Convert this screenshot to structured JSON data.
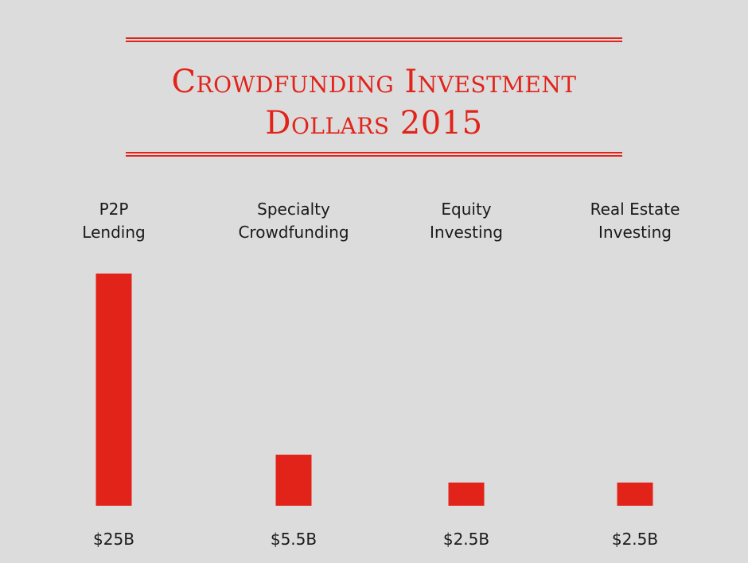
{
  "chart_data": {
    "type": "bar",
    "title_lines": [
      "Crowdfunding Investment",
      "Dollars 2015"
    ],
    "categories": [
      [
        "P2P",
        "Lending"
      ],
      [
        "Specialty",
        "Crowdfunding"
      ],
      [
        "Equity",
        "Investing"
      ],
      [
        "Real Estate",
        "Investing"
      ]
    ],
    "values": [
      25,
      5.5,
      2.5,
      2.5
    ],
    "value_labels": [
      "$25B",
      "$5.5B",
      "$2.5B",
      "$2.5B"
    ],
    "unit": "B",
    "bar_color": "#e2231a",
    "ylim": [
      0,
      25
    ],
    "grid": false,
    "legend": "none"
  }
}
